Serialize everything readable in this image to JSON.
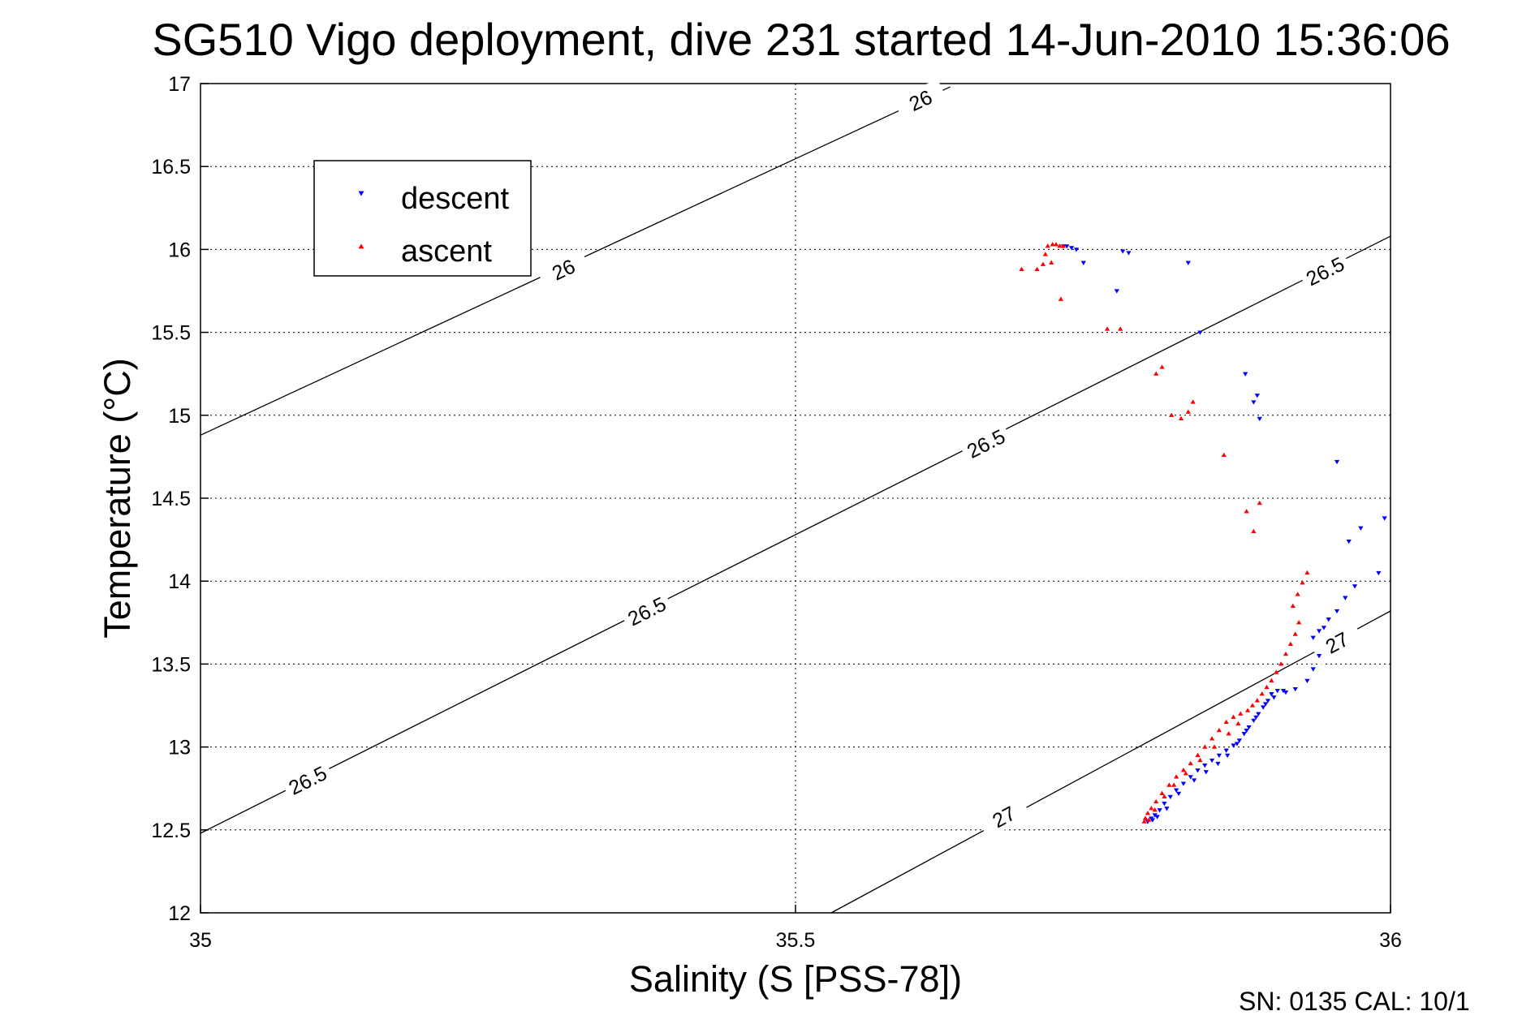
{
  "chart_data": {
    "type": "scatter",
    "title": "SG510 Vigo deployment, dive 231 started 14-Jun-2010 15:36:06",
    "xlabel": "Salinity (S [PSS-78])",
    "ylabel": "Temperature (°C)",
    "xlim": [
      35,
      36
    ],
    "ylim": [
      12,
      17
    ],
    "x_ticks": [
      35,
      35.5,
      36
    ],
    "x_tick_labels": [
      "35",
      "35.5",
      "36"
    ],
    "y_ticks": [
      12,
      12.5,
      13,
      13.5,
      14,
      14.5,
      15,
      15.5,
      16,
      16.5,
      17
    ],
    "y_tick_labels": [
      "12",
      "12.5",
      "13",
      "13.5",
      "14",
      "14.5",
      "15",
      "15.5",
      "16",
      "16.5",
      "17"
    ],
    "grid": true,
    "legend_position": "top-left",
    "footer_note": "SN: 0135  CAL: 10/1",
    "colors": {
      "descent": "#0000ff",
      "ascent": "#ff0000",
      "contour": "#000000",
      "grid": "#000000"
    },
    "contours": [
      {
        "level": "26",
        "points": [
          [
            35,
            14.88
          ],
          [
            35.63,
            16.98
          ]
        ],
        "labels": [
          {
            "x": 35.305,
            "y": 15.88
          },
          {
            "x": 35.605,
            "y": 16.9
          }
        ]
      },
      {
        "level": "26.5",
        "points": [
          [
            35,
            12.48
          ],
          [
            36,
            16.08
          ]
        ],
        "labels": [
          {
            "x": 35.09,
            "y": 12.8
          },
          {
            "x": 35.375,
            "y": 13.82
          },
          {
            "x": 35.66,
            "y": 14.83
          },
          {
            "x": 35.945,
            "y": 15.87
          }
        ]
      },
      {
        "level": "27",
        "points": [
          [
            35.53,
            12
          ],
          [
            36,
            13.82
          ]
        ],
        "labels": [
          {
            "x": 35.675,
            "y": 12.58
          },
          {
            "x": 35.955,
            "y": 13.63
          }
        ]
      }
    ],
    "series": [
      {
        "name": "descent",
        "marker": "triangle-down",
        "color": "#0000ff",
        "points": [
          [
            35.725,
            16.02
          ],
          [
            35.728,
            16.02
          ],
          [
            35.732,
            16.01
          ],
          [
            35.736,
            16.0
          ],
          [
            35.742,
            15.92
          ],
          [
            35.77,
            15.75
          ],
          [
            35.775,
            15.99
          ],
          [
            35.78,
            15.98
          ],
          [
            35.83,
            15.92
          ],
          [
            35.84,
            15.5
          ],
          [
            35.878,
            15.25
          ],
          [
            35.885,
            15.08
          ],
          [
            35.888,
            15.12
          ],
          [
            35.89,
            14.98
          ],
          [
            35.955,
            14.72
          ],
          [
            35.965,
            14.24
          ],
          [
            35.975,
            14.32
          ],
          [
            35.99,
            14.05
          ],
          [
            35.995,
            14.38
          ],
          [
            35.97,
            13.97
          ],
          [
            35.962,
            13.9
          ],
          [
            35.955,
            13.82
          ],
          [
            35.948,
            13.77
          ],
          [
            35.944,
            13.72
          ],
          [
            35.94,
            13.7
          ],
          [
            35.935,
            13.66
          ],
          [
            35.94,
            13.55
          ],
          [
            35.935,
            13.47
          ],
          [
            35.93,
            13.4
          ],
          [
            35.92,
            13.35
          ],
          [
            35.91,
            13.34
          ],
          [
            35.905,
            13.34
          ],
          [
            35.9,
            13.32
          ],
          [
            35.897,
            13.28
          ],
          [
            35.893,
            13.24
          ],
          [
            35.889,
            13.2
          ],
          [
            35.885,
            13.16
          ],
          [
            35.881,
            13.12
          ],
          [
            35.877,
            13.08
          ],
          [
            35.873,
            13.04
          ],
          [
            35.868,
            13.01
          ],
          [
            35.862,
            12.98
          ],
          [
            35.856,
            12.95
          ],
          [
            35.85,
            12.92
          ],
          [
            35.844,
            12.89
          ],
          [
            35.838,
            12.86
          ],
          [
            35.832,
            12.82
          ],
          [
            35.826,
            12.78
          ],
          [
            35.82,
            12.74
          ],
          [
            35.815,
            12.7
          ],
          [
            35.81,
            12.66
          ],
          [
            35.806,
            12.62
          ],
          [
            35.802,
            12.59
          ],
          [
            35.799,
            12.57
          ],
          [
            35.796,
            12.55
          ],
          [
            35.8,
            12.56
          ],
          [
            35.804,
            12.58
          ],
          [
            35.812,
            12.63
          ],
          [
            35.822,
            12.72
          ],
          [
            35.835,
            12.8
          ],
          [
            35.845,
            12.85
          ],
          [
            35.855,
            12.9
          ],
          [
            35.863,
            12.95
          ],
          [
            35.871,
            13.02
          ],
          [
            35.879,
            13.1
          ],
          [
            35.887,
            13.18
          ],
          [
            35.895,
            13.26
          ],
          [
            35.902,
            13.3
          ],
          [
            35.912,
            13.33
          ]
        ]
      },
      {
        "name": "ascent",
        "marker": "triangle-up",
        "color": "#ff0000",
        "points": [
          [
            35.69,
            15.88
          ],
          [
            35.703,
            15.88
          ],
          [
            35.708,
            15.91
          ],
          [
            35.712,
            16.02
          ],
          [
            35.716,
            16.03
          ],
          [
            35.719,
            16.03
          ],
          [
            35.722,
            16.02
          ],
          [
            35.725,
            16.02
          ],
          [
            35.71,
            15.97
          ],
          [
            35.715,
            15.92
          ],
          [
            35.723,
            15.7
          ],
          [
            35.762,
            15.52
          ],
          [
            35.773,
            15.52
          ],
          [
            35.803,
            15.25
          ],
          [
            35.808,
            15.29
          ],
          [
            35.816,
            15.0
          ],
          [
            35.824,
            14.98
          ],
          [
            35.83,
            15.02
          ],
          [
            35.834,
            15.08
          ],
          [
            35.86,
            14.76
          ],
          [
            35.879,
            14.42
          ],
          [
            35.885,
            14.3
          ],
          [
            35.89,
            14.47
          ],
          [
            35.93,
            14.05
          ],
          [
            35.926,
            13.99
          ],
          [
            35.922,
            13.92
          ],
          [
            35.918,
            13.85
          ],
          [
            35.923,
            13.75
          ],
          [
            35.92,
            13.68
          ],
          [
            35.916,
            13.62
          ],
          [
            35.912,
            13.56
          ],
          [
            35.908,
            13.5
          ],
          [
            35.904,
            13.45
          ],
          [
            35.9,
            13.4
          ],
          [
            35.896,
            13.36
          ],
          [
            35.892,
            13.32
          ],
          [
            35.888,
            13.28
          ],
          [
            35.884,
            13.25
          ],
          [
            35.88,
            13.22
          ],
          [
            35.874,
            13.2
          ],
          [
            35.868,
            13.18
          ],
          [
            35.862,
            13.15
          ],
          [
            35.856,
            13.1
          ],
          [
            35.85,
            13.05
          ],
          [
            35.844,
            13.0
          ],
          [
            35.838,
            12.95
          ],
          [
            35.832,
            12.9
          ],
          [
            35.826,
            12.86
          ],
          [
            35.82,
            12.82
          ],
          [
            35.814,
            12.77
          ],
          [
            35.808,
            12.72
          ],
          [
            35.803,
            12.67
          ],
          [
            35.799,
            12.63
          ],
          [
            35.796,
            12.6
          ],
          [
            35.794,
            12.57
          ],
          [
            35.793,
            12.55
          ],
          [
            35.797,
            12.56
          ],
          [
            35.802,
            12.62
          ],
          [
            35.81,
            12.7
          ],
          [
            35.818,
            12.77
          ],
          [
            35.828,
            12.84
          ],
          [
            35.84,
            12.92
          ],
          [
            35.852,
            13.0
          ],
          [
            35.864,
            13.08
          ],
          [
            35.872,
            13.14
          ]
        ]
      }
    ]
  }
}
